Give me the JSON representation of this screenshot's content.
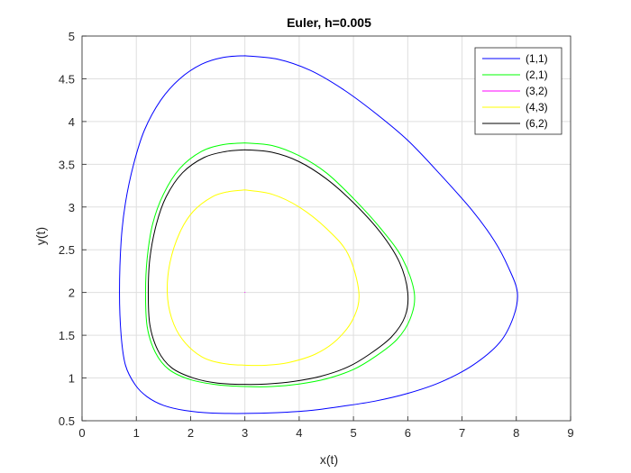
{
  "chart_data": {
    "type": "line",
    "title": "Euler, h=0.005",
    "xlabel": "x(t)",
    "ylabel": "y(t)",
    "xlim": [
      0,
      9
    ],
    "ylim": [
      0.5,
      5
    ],
    "xticks": [
      "0",
      "1",
      "2",
      "3",
      "4",
      "5",
      "6",
      "7",
      "8",
      "9"
    ],
    "yticks": [
      "0.5",
      "1",
      "1.5",
      "2",
      "2.5",
      "3",
      "3.5",
      "4",
      "4.5",
      "5"
    ],
    "grid": true,
    "legend_position": "top-right",
    "series": [
      {
        "name": "(1,1)",
        "color": "#0000ff",
        "points": [
          [
            3,
            4.77
          ],
          [
            3.6,
            4.73
          ],
          [
            4.2,
            4.6
          ],
          [
            4.8,
            4.38
          ],
          [
            5.4,
            4.1
          ],
          [
            6,
            3.78
          ],
          [
            6.6,
            3.38
          ],
          [
            7.2,
            2.95
          ],
          [
            7.6,
            2.6
          ],
          [
            7.85,
            2.3
          ],
          [
            8.02,
            2.0
          ],
          [
            7.95,
            1.72
          ],
          [
            7.7,
            1.42
          ],
          [
            7.2,
            1.15
          ],
          [
            6.6,
            0.95
          ],
          [
            6,
            0.82
          ],
          [
            5.4,
            0.73
          ],
          [
            4.8,
            0.67
          ],
          [
            4.2,
            0.62
          ],
          [
            3.6,
            0.595
          ],
          [
            3,
            0.585
          ],
          [
            2.4,
            0.59
          ],
          [
            1.9,
            0.62
          ],
          [
            1.5,
            0.68
          ],
          [
            1.2,
            0.78
          ],
          [
            0.98,
            0.92
          ],
          [
            0.8,
            1.15
          ],
          [
            0.72,
            1.5
          ],
          [
            0.69,
            2.0
          ],
          [
            0.72,
            2.6
          ],
          [
            0.8,
            3.05
          ],
          [
            0.95,
            3.5
          ],
          [
            1.15,
            3.9
          ],
          [
            1.45,
            4.25
          ],
          [
            1.8,
            4.5
          ],
          [
            2.2,
            4.67
          ],
          [
            2.6,
            4.75
          ],
          [
            3,
            4.77
          ]
        ]
      },
      {
        "name": "(2,1)",
        "color": "#00ff00",
        "points": [
          [
            3,
            3.75
          ],
          [
            3.5,
            3.72
          ],
          [
            4,
            3.6
          ],
          [
            4.5,
            3.4
          ],
          [
            5,
            3.1
          ],
          [
            5.5,
            2.75
          ],
          [
            5.9,
            2.4
          ],
          [
            6.12,
            2.0
          ],
          [
            6.05,
            1.7
          ],
          [
            5.8,
            1.45
          ],
          [
            5.4,
            1.25
          ],
          [
            5,
            1.1
          ],
          [
            4.5,
            0.99
          ],
          [
            4,
            0.93
          ],
          [
            3.5,
            0.9
          ],
          [
            3,
            0.9
          ],
          [
            2.5,
            0.92
          ],
          [
            2,
            0.98
          ],
          [
            1.6,
            1.1
          ],
          [
            1.35,
            1.3
          ],
          [
            1.2,
            1.6
          ],
          [
            1.17,
            2.0
          ],
          [
            1.2,
            2.4
          ],
          [
            1.3,
            2.8
          ],
          [
            1.5,
            3.15
          ],
          [
            1.8,
            3.45
          ],
          [
            2.2,
            3.65
          ],
          [
            2.6,
            3.73
          ],
          [
            3,
            3.75
          ]
        ]
      },
      {
        "name": "(3,2)",
        "color": "#ff00ff",
        "points": [
          [
            3,
            2
          ],
          [
            3.002,
            2.001
          ],
          [
            3,
            2.002
          ],
          [
            2.998,
            2.001
          ],
          [
            3,
            2
          ]
        ]
      },
      {
        "name": "(4,3)",
        "color": "#ffff00",
        "points": [
          [
            3,
            3.2
          ],
          [
            3.5,
            3.15
          ],
          [
            4,
            3.0
          ],
          [
            4.5,
            2.75
          ],
          [
            4.9,
            2.45
          ],
          [
            5.1,
            2.0
          ],
          [
            5.0,
            1.7
          ],
          [
            4.7,
            1.45
          ],
          [
            4.3,
            1.28
          ],
          [
            3.8,
            1.18
          ],
          [
            3.4,
            1.15
          ],
          [
            3,
            1.15
          ],
          [
            2.6,
            1.17
          ],
          [
            2.2,
            1.25
          ],
          [
            1.85,
            1.45
          ],
          [
            1.65,
            1.7
          ],
          [
            1.57,
            2.0
          ],
          [
            1.62,
            2.35
          ],
          [
            1.8,
            2.7
          ],
          [
            2.05,
            2.95
          ],
          [
            2.4,
            3.12
          ],
          [
            2.7,
            3.18
          ],
          [
            3,
            3.2
          ]
        ]
      },
      {
        "name": "(6,2)",
        "color": "#000000",
        "points": [
          [
            3,
            3.67
          ],
          [
            3.5,
            3.64
          ],
          [
            4,
            3.53
          ],
          [
            4.5,
            3.33
          ],
          [
            5,
            3.05
          ],
          [
            5.5,
            2.7
          ],
          [
            5.85,
            2.35
          ],
          [
            6.0,
            2.0
          ],
          [
            5.95,
            1.72
          ],
          [
            5.7,
            1.48
          ],
          [
            5.3,
            1.28
          ],
          [
            4.9,
            1.13
          ],
          [
            4.4,
            1.02
          ],
          [
            3.9,
            0.96
          ],
          [
            3.4,
            0.93
          ],
          [
            3,
            0.925
          ],
          [
            2.5,
            0.94
          ],
          [
            2.05,
            1.0
          ],
          [
            1.65,
            1.12
          ],
          [
            1.4,
            1.32
          ],
          [
            1.25,
            1.62
          ],
          [
            1.22,
            2.0
          ],
          [
            1.25,
            2.4
          ],
          [
            1.37,
            2.8
          ],
          [
            1.55,
            3.12
          ],
          [
            1.85,
            3.4
          ],
          [
            2.25,
            3.58
          ],
          [
            2.65,
            3.65
          ],
          [
            3,
            3.67
          ]
        ]
      }
    ]
  }
}
